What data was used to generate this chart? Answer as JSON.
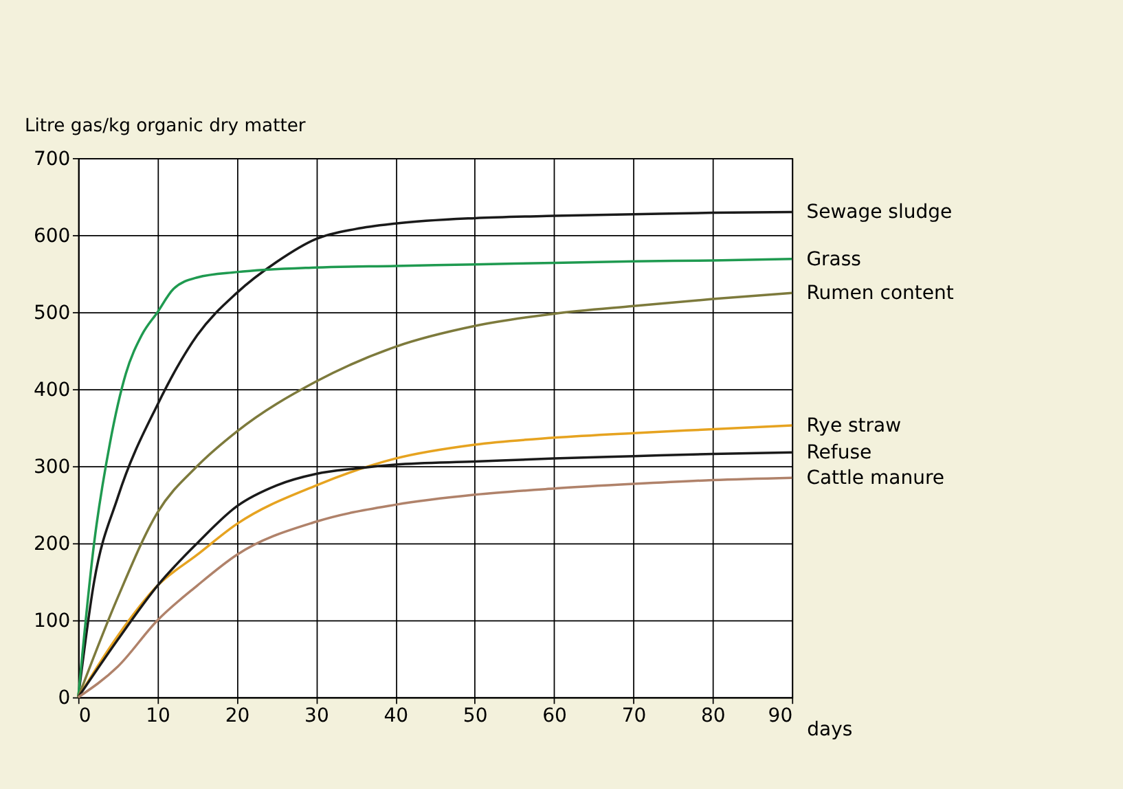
{
  "chart_data": {
    "type": "line",
    "xlabel": "days",
    "ylabel": "Litre gas/kg organic dry matter",
    "xlim": [
      0,
      90
    ],
    "xticks": [
      0,
      10,
      20,
      30,
      40,
      50,
      60,
      70,
      80,
      90
    ],
    "ylim": [
      0,
      700
    ],
    "yticks": [
      0,
      100,
      200,
      300,
      400,
      500,
      600,
      700
    ],
    "grid": true,
    "series": [
      {
        "name": "Sewage sludge",
        "color": "#1a1a1a",
        "x": [
          0,
          2,
          5,
          10,
          15,
          20,
          25,
          30,
          35,
          40,
          50,
          60,
          70,
          80,
          90
        ],
        "values": [
          0,
          150,
          260,
          380,
          470,
          525,
          565,
          595,
          608,
          615,
          622,
          625,
          627,
          629,
          630
        ]
      },
      {
        "name": "Grass",
        "color": "#1f9a50",
        "x": [
          0,
          2,
          4,
          6,
          8,
          10,
          12,
          15,
          20,
          30,
          40,
          50,
          60,
          70,
          80,
          90
        ],
        "values": [
          0,
          200,
          330,
          420,
          470,
          500,
          530,
          545,
          552,
          558,
          560,
          562,
          564,
          566,
          567,
          569
        ]
      },
      {
        "name": "Rumen content",
        "color": "#7d7a3c",
        "x": [
          0,
          5,
          10,
          15,
          20,
          30,
          40,
          50,
          60,
          70,
          80,
          90
        ],
        "values": [
          0,
          130,
          240,
          300,
          345,
          410,
          455,
          482,
          498,
          508,
          517,
          525
        ]
      },
      {
        "name": "Rye straw",
        "color": "#e6a320",
        "x": [
          0,
          5,
          10,
          15,
          20,
          30,
          40,
          50,
          60,
          70,
          80,
          90
        ],
        "values": [
          0,
          80,
          145,
          185,
          225,
          275,
          310,
          328,
          337,
          343,
          348,
          353
        ]
      },
      {
        "name": "Refuse",
        "color": "#1a1a1a",
        "x": [
          0,
          5,
          10,
          15,
          20,
          25,
          30,
          35,
          40,
          50,
          60,
          70,
          80,
          90
        ],
        "values": [
          0,
          75,
          145,
          200,
          248,
          275,
          290,
          297,
          302,
          306,
          310,
          313,
          316,
          318
        ]
      },
      {
        "name": "Cattle manure",
        "color": "#b0826a",
        "x": [
          0,
          5,
          10,
          15,
          20,
          30,
          40,
          50,
          60,
          70,
          80,
          90
        ],
        "values": [
          0,
          40,
          100,
          145,
          185,
          228,
          250,
          263,
          271,
          277,
          282,
          285
        ]
      }
    ]
  }
}
